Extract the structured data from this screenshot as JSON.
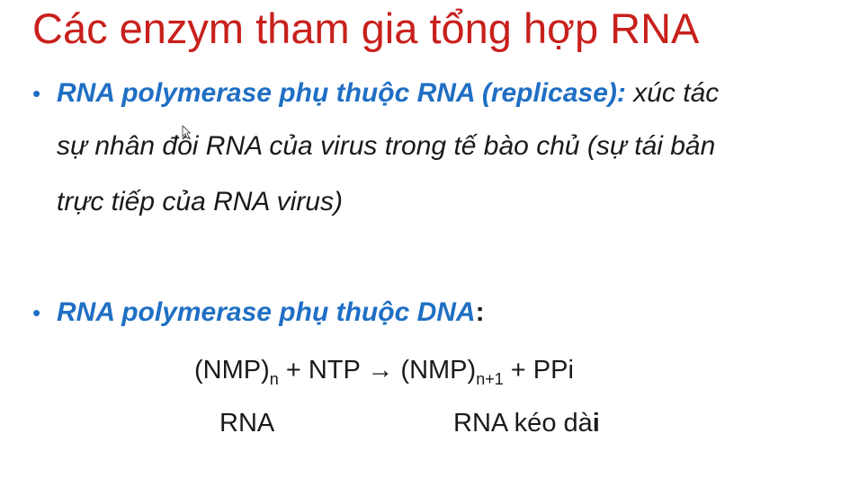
{
  "slide": {
    "title": "Các enzym tham gia tổng hợp RNA",
    "bullet_symbol": "•",
    "bullet1": {
      "term": "RNA polymerase phụ thuộc RNA (replicase):",
      "desc_line1": " xúc tác",
      "desc_line2": "sự nhân đôi RNA của virus trong tế bào chủ (sự tái bản",
      "desc_line3": "trực tiếp của RNA virus)"
    },
    "bullet2": {
      "term": "RNA polymerase phụ thuộc DNA",
      "colon": ":"
    },
    "equation": {
      "left": "(NMP)",
      "left_sub": "n",
      "middle": " + NTP → ",
      "right": "(NMP)",
      "right_sub": "n+1",
      "tail": " + PPi",
      "label_left": "RNA",
      "label_right_pre": "RNA kéo dà",
      "label_right_bold": "i"
    }
  }
}
